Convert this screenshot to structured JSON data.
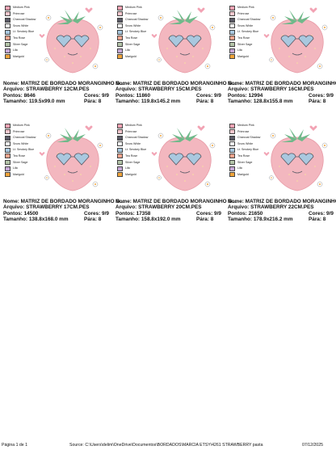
{
  "palette": [
    {
      "label": "Medium Pink",
      "color": "#f2a3b4"
    },
    {
      "label": "Primrose",
      "color": "#f6c9cf"
    },
    {
      "label": "Charcoal Shadow",
      "color": "#5a5a66"
    },
    {
      "label": "Snow White",
      "color": "#f4f4f4"
    },
    {
      "label": "Lt. Smokey Blue",
      "color": "#a9c8df"
    },
    {
      "label": "Tea Rose",
      "color": "#f4a58e"
    },
    {
      "label": "Silver Sage",
      "color": "#b3c4a8"
    },
    {
      "label": "Lilic",
      "color": "#c6a7d6"
    },
    {
      "label": "Marigold",
      "color": "#f0a43a"
    }
  ],
  "designs": [
    {
      "name_label": "Nome:",
      "name": "MATRIZ DE BORDADO MORANGINHO G...",
      "file_label": "Arquivo:",
      "file": "STRAWBERRY 12CM.PES",
      "points_label": "Pontos:",
      "points": "8646",
      "colors_label": "Cores:",
      "colors": "9/9",
      "size_label": "Tamanho:",
      "size": "119.5x99.0 mm",
      "stops_label": "Pára:",
      "stops": "8"
    },
    {
      "name_label": "Nome:",
      "name": "MATRIZ DE BORDADO MORANGINHO G...",
      "file_label": "Arquivo:",
      "file": "STRAWBERRY 15CM.PES",
      "points_label": "Pontos:",
      "points": "11860",
      "colors_label": "Cores:",
      "colors": "9/9",
      "size_label": "Tamanho:",
      "size": "119.8x145.2 mm",
      "stops_label": "Pára:",
      "stops": "8"
    },
    {
      "name_label": "Nome:",
      "name": "MATRIZ DE BORDADO MORANGINHO G...",
      "file_label": "Arquivo:",
      "file": "STRAWBERRY 16CM.PES",
      "points_label": "Pontos:",
      "points": "12994",
      "colors_label": "Cores:",
      "colors": "9/9",
      "size_label": "Tamanho:",
      "size": "128.8x155.8 mm",
      "stops_label": "Pára:",
      "stops": "8"
    },
    {
      "name_label": "Nome:",
      "name": "MATRIZ DE BORDADO MORANGINHO G...",
      "file_label": "Arquivo:",
      "file": "STRAWBERRY 17CM.PES",
      "points_label": "Pontos:",
      "points": "14500",
      "colors_label": "Cores:",
      "colors": "9/9",
      "size_label": "Tamanho:",
      "size": "138.8x168.0 mm",
      "stops_label": "Pára:",
      "stops": "8"
    },
    {
      "name_label": "Nome:",
      "name": "MATRIZ DE BORDADO MORANGINHO G...",
      "file_label": "Arquivo:",
      "file": "STRAWBERRY 20CM.PES",
      "points_label": "Pontos:",
      "points": "17358",
      "colors_label": "Cores:",
      "colors": "9/9",
      "size_label": "Tamanho:",
      "size": "158.8x192.0 mm",
      "stops_label": "Pára:",
      "stops": "8"
    },
    {
      "name_label": "Nome:",
      "name": "MATRIZ DE BORDADO MORANGINHO G...",
      "file_label": "Arquivo:",
      "file": "STRAWBERRY 22CM.PES",
      "points_label": "Pontos:",
      "points": "21650",
      "colors_label": "Cores:",
      "colors": "9/9",
      "size_label": "Tamanho:",
      "size": "178.9x216.2 mm",
      "stops_label": "Pára:",
      "stops": "8"
    }
  ],
  "footer": {
    "page": "Página 1 de 1",
    "source": "Source:  C:\\Users\\delim\\OneDrive\\Documentos\\BORDADOS\\MARCIA ETSY\\4261  STRAWBERRY pasta",
    "date": "07/12/2025"
  },
  "colors": {
    "strawberry": "#f3b7bf",
    "leaves": "#6fb98a",
    "glasses": "#a9c8df",
    "outline": "#5a5a66"
  }
}
